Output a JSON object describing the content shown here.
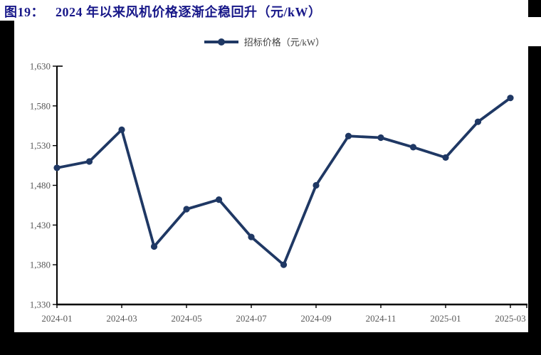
{
  "page": {
    "figure_label": "图19：",
    "figure_title": "2024 年以来风机价格逐渐企稳回升（元/kW）"
  },
  "legend": {
    "label": "招标价格（元/kW）"
  },
  "chart_data": {
    "type": "line",
    "title": "2024 年以来风机价格逐渐企稳回升（元/kW）",
    "categories": [
      "2024-01",
      "2024-02",
      "2024-03",
      "2024-04",
      "2024-05",
      "2024-06",
      "2024-07",
      "2024-08",
      "2024-09",
      "2024-10",
      "2024-11",
      "2024-12",
      "2025-01",
      "2025-02",
      "2025-03"
    ],
    "series": [
      {
        "name": "招标价格（元/kW）",
        "values": [
          1502,
          1510,
          1550,
          1403,
          1450,
          1462,
          1415,
          1380,
          1480,
          1542,
          1540,
          1528,
          1515,
          1560,
          1590
        ]
      }
    ],
    "xlabel": "",
    "ylabel": "",
    "ylim": [
      1330,
      1630
    ],
    "ytick_interval": 50,
    "ytick_labels": [
      "1,330",
      "1,380",
      "1,430",
      "1,480",
      "1,530",
      "1,580",
      "1,630"
    ],
    "xtick_labels": [
      "2024-01",
      "2024-03",
      "2024-05",
      "2024-07",
      "2024-09",
      "2024-11",
      "2025-01",
      "2025-03"
    ],
    "xtick_every": 2,
    "grid": false,
    "legend_position": "top",
    "colors": {
      "line": "#1F3864",
      "marker": "#1F3864",
      "title": "#181889",
      "axis_text": "#595959",
      "axis_line": "#000000",
      "page_edge": "#000000"
    }
  }
}
